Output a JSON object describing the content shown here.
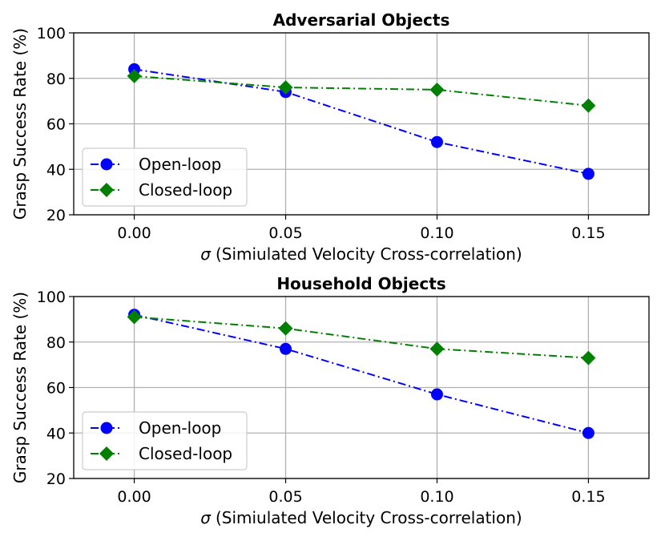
{
  "chart_data": [
    {
      "type": "line",
      "title": "Adversarial Objects",
      "xlabel_symbol": "σ",
      "xlabel": "(Simiulated Velocity Cross-correlation)",
      "ylabel": "Grasp Success Rate (%)",
      "x": [
        0.0,
        0.05,
        0.1,
        0.15
      ],
      "x_tick_labels": [
        "0.00",
        "0.05",
        "0.10",
        "0.15"
      ],
      "xlim": [
        -0.02,
        0.17
      ],
      "ylim": [
        20,
        100
      ],
      "y_ticks": [
        20,
        40,
        60,
        80,
        100
      ],
      "grid": true,
      "legend_position": "lower-left",
      "series": [
        {
          "name": "Open-loop",
          "values": [
            84,
            74,
            52,
            38
          ],
          "color": "#0000ff",
          "marker": "circle",
          "linestyle": "dash-dot"
        },
        {
          "name": "Closed-loop",
          "values": [
            81,
            76,
            75,
            68
          ],
          "color": "#008000",
          "marker": "diamond",
          "linestyle": "dash-dot"
        }
      ]
    },
    {
      "type": "line",
      "title": "Household Objects",
      "xlabel_symbol": "σ",
      "xlabel": "(Simiulated Velocity Cross-correlation)",
      "ylabel": "Grasp Success Rate (%)",
      "x": [
        0.0,
        0.05,
        0.1,
        0.15
      ],
      "x_tick_labels": [
        "0.00",
        "0.05",
        "0.10",
        "0.15"
      ],
      "xlim": [
        -0.02,
        0.17
      ],
      "ylim": [
        20,
        100
      ],
      "y_ticks": [
        20,
        40,
        60,
        80,
        100
      ],
      "grid": true,
      "legend_position": "lower-left",
      "series": [
        {
          "name": "Open-loop",
          "values": [
            92,
            77,
            57,
            40
          ],
          "color": "#0000ff",
          "marker": "circle",
          "linestyle": "dash-dot"
        },
        {
          "name": "Closed-loop",
          "values": [
            91,
            86,
            77,
            73
          ],
          "color": "#008000",
          "marker": "diamond",
          "linestyle": "dash-dot"
        }
      ]
    }
  ]
}
